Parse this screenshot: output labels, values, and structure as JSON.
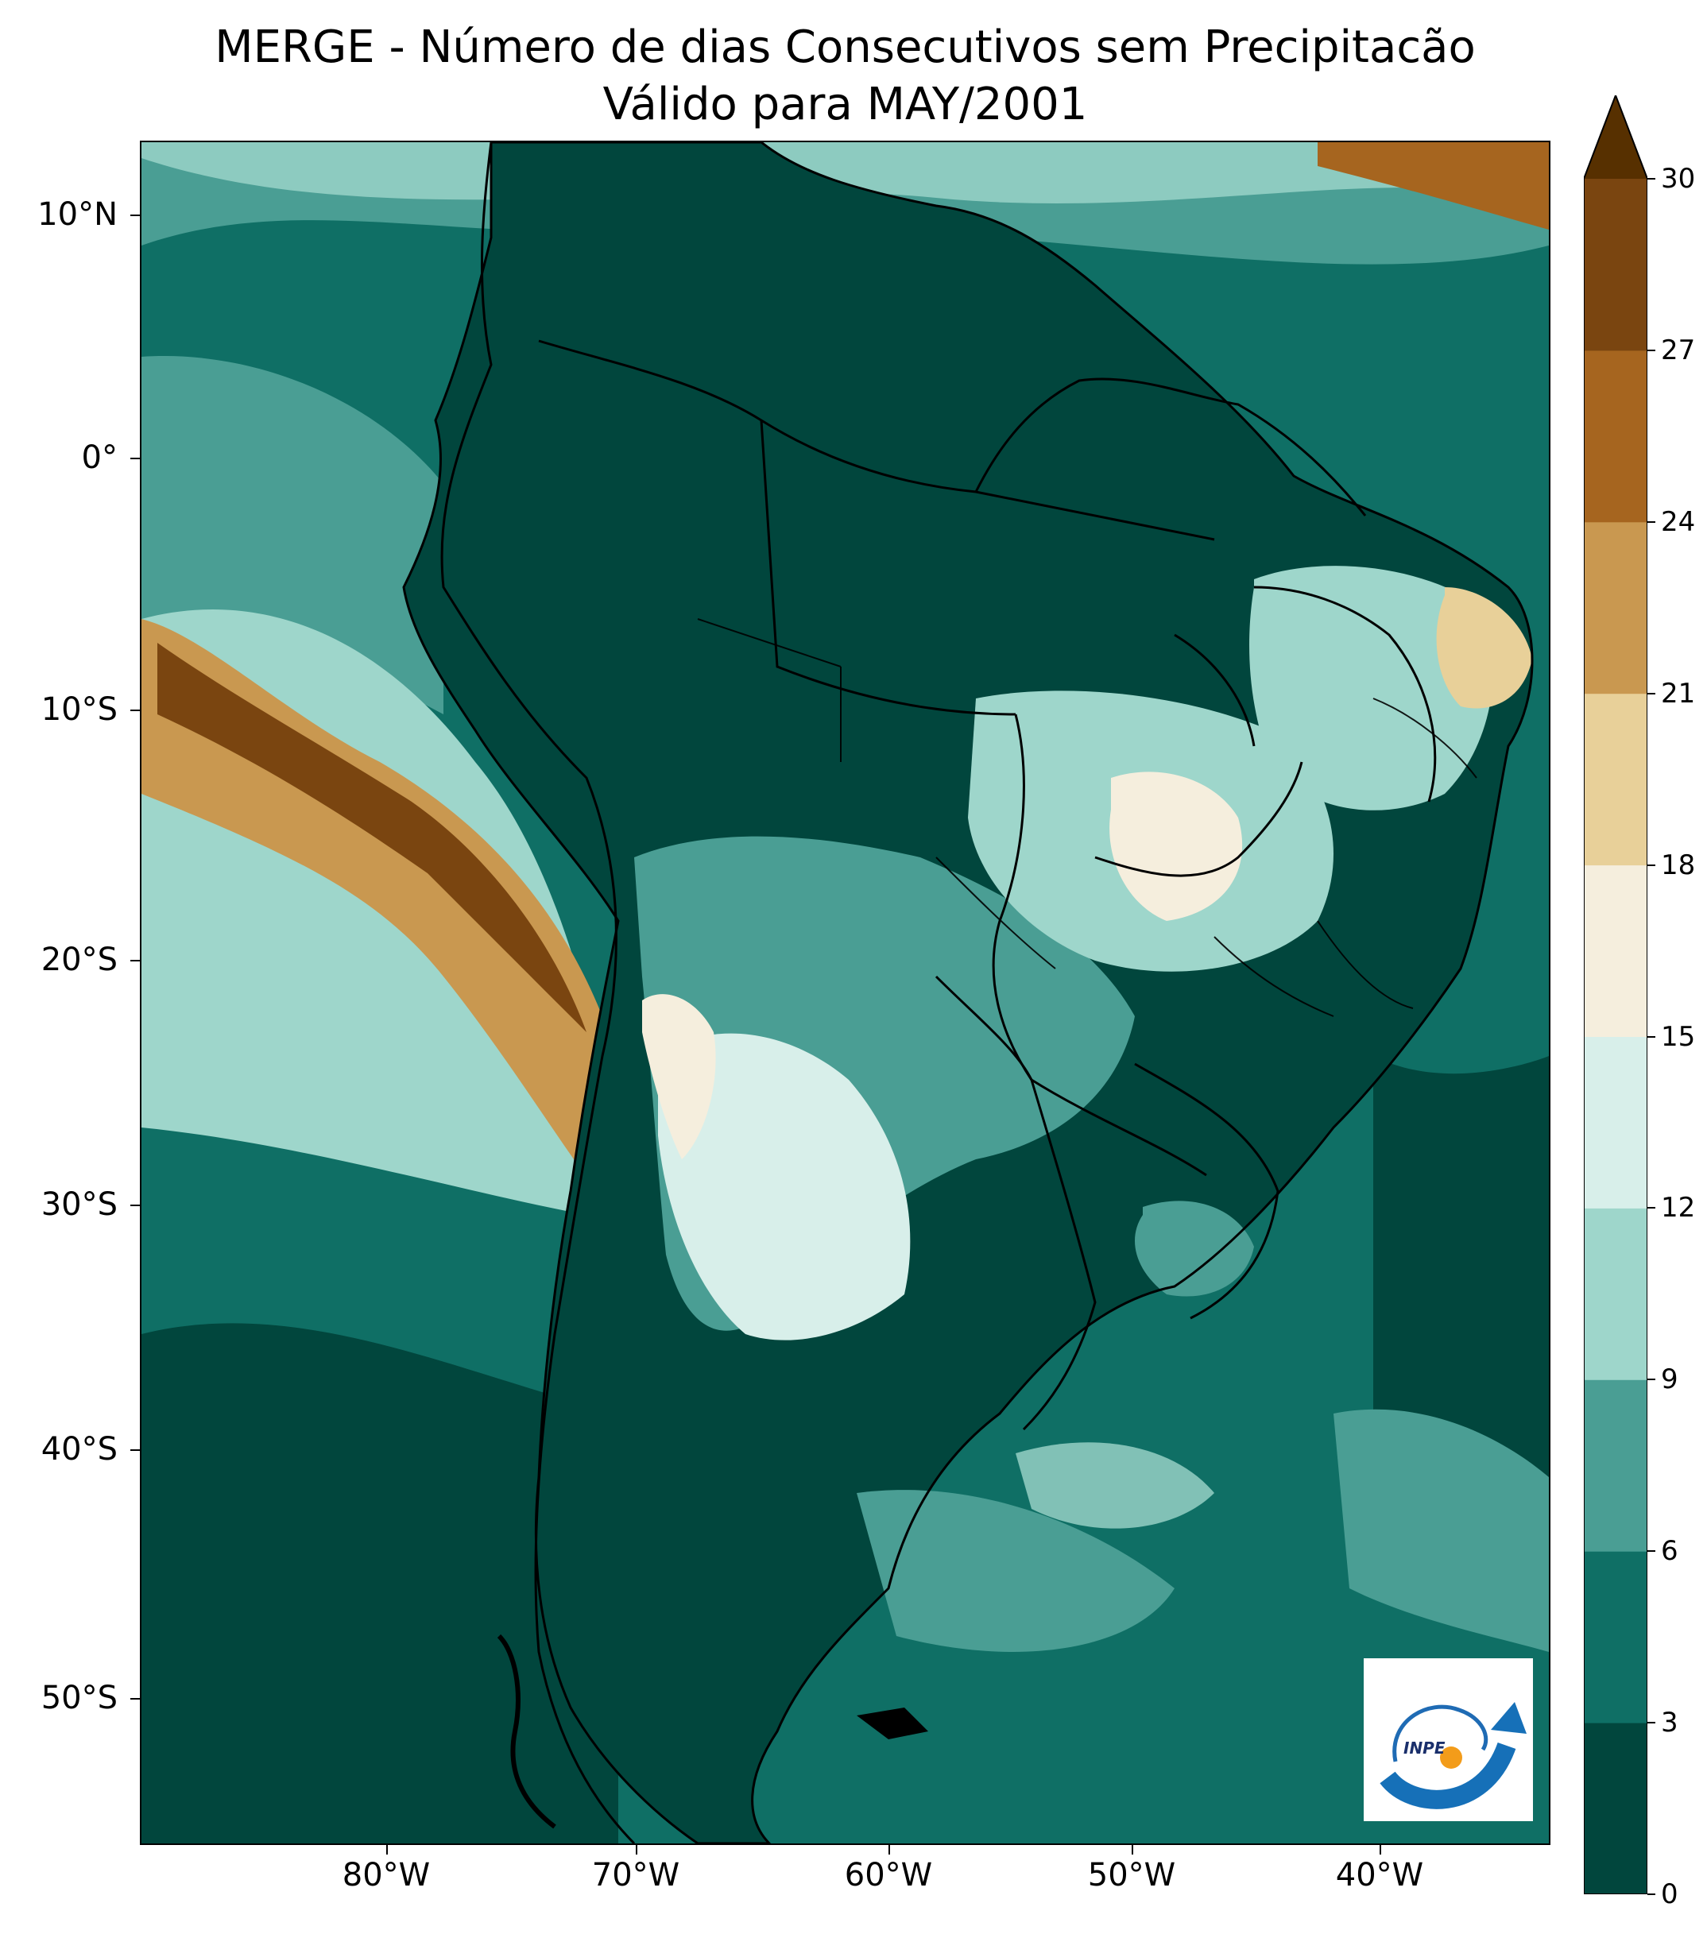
{
  "title": {
    "line1": "MERGE - Número de dias Consecutivos sem Precipitacão",
    "line2": "Válido para MAY/2001"
  },
  "axes": {
    "latitude_labels": [
      "10°N",
      "0°",
      "10°S",
      "20°S",
      "30°S",
      "40°S",
      "50°S"
    ],
    "longitude_labels": [
      "80°W",
      "70°W",
      "60°W",
      "50°W",
      "40°W"
    ]
  },
  "colorbar": {
    "tick_labels": [
      "0",
      "3",
      "6",
      "9",
      "12",
      "15",
      "18",
      "21",
      "24",
      "27",
      "30"
    ],
    "extend": "max",
    "colors": [
      "#01463d",
      "#0f6f65",
      "#4a9e94",
      "#9ed6cb",
      "#d8efea",
      "#f5eedd",
      "#e8d099",
      "#c99850",
      "#a6651f",
      "#7a4510",
      "#573000"
    ]
  },
  "logo": {
    "text": "INPE",
    "name": "inpe-logo"
  },
  "map_style": {
    "ocean_base": "#0f6f65",
    "deep_ocean": "#01463d",
    "border_color": "#000000"
  }
}
